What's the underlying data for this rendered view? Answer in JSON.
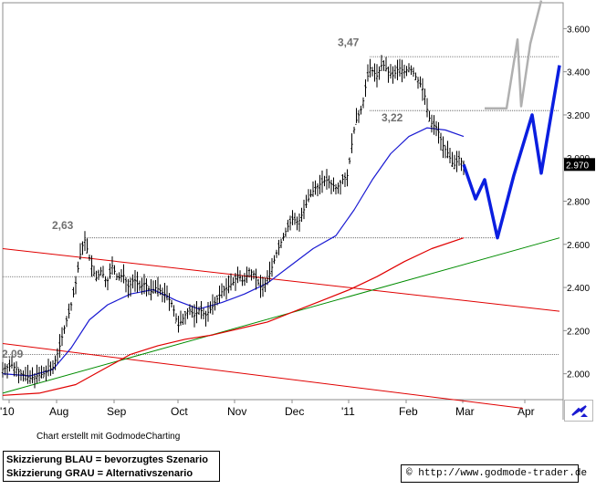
{
  "chart_data": {
    "type": "candlestick",
    "x_tick_labels": [
      "'10",
      "Aug",
      "Sep",
      "Oct",
      "Nov",
      "Dec",
      "'11",
      "Feb",
      "Mar",
      "Apr"
    ],
    "y_tick_labels": [
      "2.000",
      "2.200",
      "2.400",
      "2.600",
      "2.800",
      "3.000",
      "3.200",
      "3.400",
      "3.600"
    ],
    "ylim": [
      1.88,
      3.72
    ],
    "last_price_label": "2.970",
    "last_price": 2.97,
    "annotations": [
      {
        "text": "3,47",
        "value": 3.47
      },
      {
        "text": "3,22",
        "value": 3.22
      },
      {
        "text": "2,63",
        "value": 2.63
      },
      {
        "text": "2,09",
        "value": 2.09
      }
    ],
    "price_path": [
      [
        0,
        2.02
      ],
      [
        10,
        2.04
      ],
      [
        20,
        2.0
      ],
      [
        30,
        1.98
      ],
      [
        45,
        2.0
      ],
      [
        55,
        2.03
      ],
      [
        62,
        2.12
      ],
      [
        68,
        2.22
      ],
      [
        74,
        2.3
      ],
      [
        80,
        2.42
      ],
      [
        86,
        2.58
      ],
      [
        90,
        2.62
      ],
      [
        96,
        2.52
      ],
      [
        102,
        2.44
      ],
      [
        108,
        2.48
      ],
      [
        114,
        2.42
      ],
      [
        120,
        2.5
      ],
      [
        126,
        2.44
      ],
      [
        132,
        2.46
      ],
      [
        138,
        2.4
      ],
      [
        144,
        2.44
      ],
      [
        150,
        2.4
      ],
      [
        156,
        2.42
      ],
      [
        162,
        2.38
      ],
      [
        168,
        2.4
      ],
      [
        174,
        2.38
      ],
      [
        180,
        2.36
      ],
      [
        186,
        2.32
      ],
      [
        192,
        2.22
      ],
      [
        198,
        2.26
      ],
      [
        204,
        2.3
      ],
      [
        210,
        2.27
      ],
      [
        216,
        2.3
      ],
      [
        222,
        2.27
      ],
      [
        228,
        2.3
      ],
      [
        234,
        2.34
      ],
      [
        240,
        2.38
      ],
      [
        246,
        2.4
      ],
      [
        252,
        2.42
      ],
      [
        258,
        2.46
      ],
      [
        264,
        2.42
      ],
      [
        270,
        2.48
      ],
      [
        276,
        2.46
      ],
      [
        282,
        2.4
      ],
      [
        288,
        2.42
      ],
      [
        294,
        2.48
      ],
      [
        300,
        2.56
      ],
      [
        306,
        2.62
      ],
      [
        312,
        2.68
      ],
      [
        318,
        2.72
      ],
      [
        324,
        2.7
      ],
      [
        330,
        2.76
      ],
      [
        336,
        2.82
      ],
      [
        342,
        2.86
      ],
      [
        348,
        2.88
      ],
      [
        354,
        2.9
      ],
      [
        360,
        2.88
      ],
      [
        366,
        2.86
      ],
      [
        372,
        2.9
      ],
      [
        378,
        2.92
      ],
      [
        382,
        3.05
      ],
      [
        386,
        3.16
      ],
      [
        390,
        3.2
      ],
      [
        394,
        3.24
      ],
      [
        398,
        3.34
      ],
      [
        402,
        3.42
      ],
      [
        406,
        3.4
      ],
      [
        410,
        3.38
      ],
      [
        416,
        3.44
      ],
      [
        422,
        3.4
      ],
      [
        428,
        3.38
      ],
      [
        434,
        3.42
      ],
      [
        440,
        3.4
      ],
      [
        446,
        3.42
      ],
      [
        452,
        3.38
      ],
      [
        458,
        3.34
      ],
      [
        462,
        3.3
      ],
      [
        466,
        3.2
      ],
      [
        470,
        3.16
      ],
      [
        476,
        3.14
      ],
      [
        482,
        3.06
      ],
      [
        488,
        3.02
      ],
      [
        494,
        2.96
      ],
      [
        500,
        3.0
      ],
      [
        505,
        2.97
      ]
    ],
    "ma_blue": [
      [
        0,
        2.0
      ],
      [
        30,
        1.99
      ],
      [
        55,
        2.02
      ],
      [
        75,
        2.12
      ],
      [
        95,
        2.25
      ],
      [
        115,
        2.32
      ],
      [
        140,
        2.37
      ],
      [
        165,
        2.39
      ],
      [
        190,
        2.34
      ],
      [
        215,
        2.3
      ],
      [
        240,
        2.33
      ],
      [
        265,
        2.37
      ],
      [
        290,
        2.42
      ],
      [
        315,
        2.5
      ],
      [
        340,
        2.58
      ],
      [
        365,
        2.64
      ],
      [
        385,
        2.76
      ],
      [
        405,
        2.9
      ],
      [
        425,
        3.02
      ],
      [
        445,
        3.1
      ],
      [
        465,
        3.14
      ],
      [
        485,
        3.13
      ],
      [
        505,
        3.1
      ]
    ],
    "ma_red": [
      [
        0,
        1.9
      ],
      [
        40,
        1.91
      ],
      [
        80,
        1.95
      ],
      [
        110,
        2.02
      ],
      [
        140,
        2.09
      ],
      [
        170,
        2.13
      ],
      [
        200,
        2.16
      ],
      [
        230,
        2.18
      ],
      [
        260,
        2.21
      ],
      [
        290,
        2.24
      ],
      [
        320,
        2.29
      ],
      [
        350,
        2.34
      ],
      [
        380,
        2.39
      ],
      [
        410,
        2.45
      ],
      [
        440,
        2.52
      ],
      [
        470,
        2.58
      ],
      [
        505,
        2.63
      ]
    ],
    "trendlines": [
      {
        "color": "#e00000",
        "points": [
          [
            0,
            2.58
          ],
          [
            610,
            2.29
          ]
        ]
      },
      {
        "color": "#e00000",
        "points": [
          [
            0,
            2.14
          ],
          [
            570,
            1.84
          ]
        ]
      },
      {
        "color": "#008c00",
        "points": [
          [
            0,
            1.91
          ],
          [
            610,
            2.63
          ]
        ]
      }
    ],
    "horizontal_levels": [
      {
        "value": 3.47,
        "from": 402,
        "to": 610
      },
      {
        "value": 3.22,
        "from": 402,
        "to": 610
      },
      {
        "value": 2.63,
        "from": 90,
        "to": 540
      },
      {
        "value": 2.45,
        "from": 0,
        "to": 290
      },
      {
        "value": 2.09,
        "from": 0,
        "to": 610
      }
    ],
    "scenario_blue": [
      [
        505,
        2.97
      ],
      [
        518,
        2.81
      ],
      [
        528,
        2.9
      ],
      [
        542,
        2.63
      ],
      [
        560,
        2.92
      ],
      [
        580,
        3.2
      ],
      [
        590,
        2.93
      ],
      [
        610,
        3.43
      ]
    ],
    "scenario_grey": [
      [
        528,
        3.23
      ],
      [
        552,
        3.23
      ],
      [
        564,
        3.55
      ],
      [
        568,
        3.24
      ],
      [
        578,
        3.53
      ],
      [
        590,
        3.73
      ]
    ]
  },
  "credit": "Chart erstellt mit GodmodeCharting",
  "legend": {
    "line1": "Skizzierung BLAU = bevorzugtes Szenario",
    "line2": "Skizzierung GRAU = Alternativszenario"
  },
  "url": "http://www.godmode-trader.de",
  "copyright": "©",
  "colors": {
    "price": "#000000",
    "ma_short": "#1a1ad2",
    "ma_long": "#e00000",
    "scenario_blue": "#0a1ee0",
    "scenario_grey": "#b0b0b0",
    "annotation": "#707070"
  }
}
